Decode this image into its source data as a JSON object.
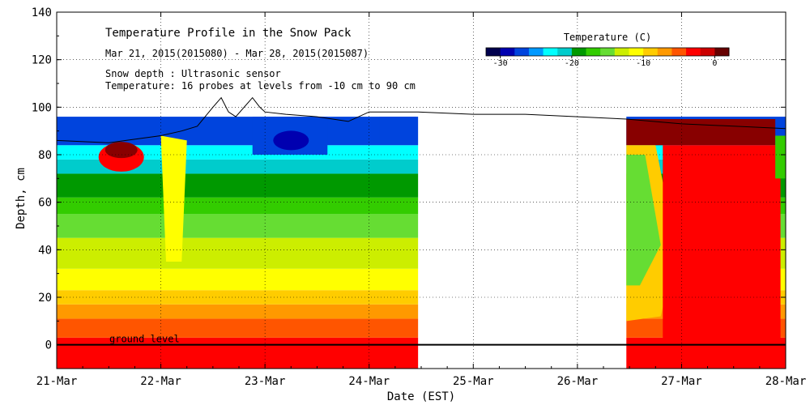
{
  "chart_data": {
    "type": "heatmap",
    "title": "Temperature Profile in the Snow Pack",
    "subtitle": "Mar 21, 2015(2015080) - Mar 28, 2015(2015087)",
    "note_depth": "Snow depth : Ultrasonic sensor",
    "note_temperature": "Temperature: 16 probes at levels from -10 cm to 90 cm",
    "xlabel": "Date (EST)",
    "ylabel": "Depth, cm",
    "x_ticks": [
      "21-Mar",
      "22-Mar",
      "23-Mar",
      "24-Mar",
      "25-Mar",
      "26-Mar",
      "27-Mar",
      "28-Mar"
    ],
    "x_range_days": [
      0,
      7
    ],
    "y_ticks": [
      0,
      20,
      40,
      60,
      80,
      100,
      120,
      140
    ],
    "y_tick_labels": [
      "0",
      "20",
      "40",
      "60",
      "80",
      "100",
      "120",
      "140"
    ],
    "ylim": [
      -10,
      140
    ],
    "ground_level_label": "ground level",
    "ground_level": 0,
    "colorbar": {
      "title": "Temperature (C)",
      "min": -32,
      "max": 2,
      "tick_values": [
        -30,
        -20,
        -10,
        0
      ],
      "tick_labels": [
        "-30",
        "-20",
        "-10",
        "0"
      ],
      "colors": [
        "#00004d",
        "#0000b0",
        "#0044dd",
        "#0099ff",
        "#00ffff",
        "#00cccc",
        "#009900",
        "#33cc00",
        "#66dd33",
        "#ccee00",
        "#ffff00",
        "#ffcc00",
        "#ff9900",
        "#ff5500",
        "#ff0000",
        "#cc0000",
        "#660000"
      ]
    },
    "temperature_bands": [
      {
        "from": -10,
        "to": 3,
        "color": "#ff0000"
      },
      {
        "from": 3,
        "to": 11,
        "color": "#ff5500"
      },
      {
        "from": 11,
        "to": 17,
        "color": "#ff9900"
      },
      {
        "from": 17,
        "to": 23,
        "color": "#ffcc00"
      },
      {
        "from": 23,
        "to": 32,
        "color": "#ffff00"
      },
      {
        "from": 32,
        "to": 45,
        "color": "#ccee00"
      },
      {
        "from": 45,
        "to": 55,
        "color": "#66dd33"
      },
      {
        "from": 55,
        "to": 62,
        "color": "#33cc00"
      },
      {
        "from": 62,
        "to": 72,
        "color": "#009900"
      },
      {
        "from": 72,
        "to": 78,
        "color": "#00cccc"
      },
      {
        "from": 78,
        "to": 84,
        "color": "#00ffff"
      },
      {
        "from": 84,
        "to": 96,
        "color": "#0044dd"
      }
    ],
    "data_segments": [
      {
        "start_day": 0,
        "end_day": 3.47
      },
      {
        "start_day": 5.47,
        "end_day": 7
      }
    ],
    "snow_depth": {
      "x_days": [
        0,
        0.5,
        1.0,
        1.2,
        1.35,
        1.5,
        1.58,
        1.65,
        1.72,
        1.8,
        1.88,
        1.95,
        2.0,
        2.2,
        2.5,
        2.8,
        3.0,
        3.47,
        4.0,
        4.5,
        5.0,
        5.47,
        6.0,
        6.5,
        7.0
      ],
      "depth": [
        86,
        85,
        88,
        90,
        92,
        100,
        104,
        98,
        96,
        100,
        104,
        100,
        98,
        97,
        96,
        94,
        98,
        98,
        97,
        97,
        96,
        95,
        93,
        92,
        91
      ]
    }
  }
}
